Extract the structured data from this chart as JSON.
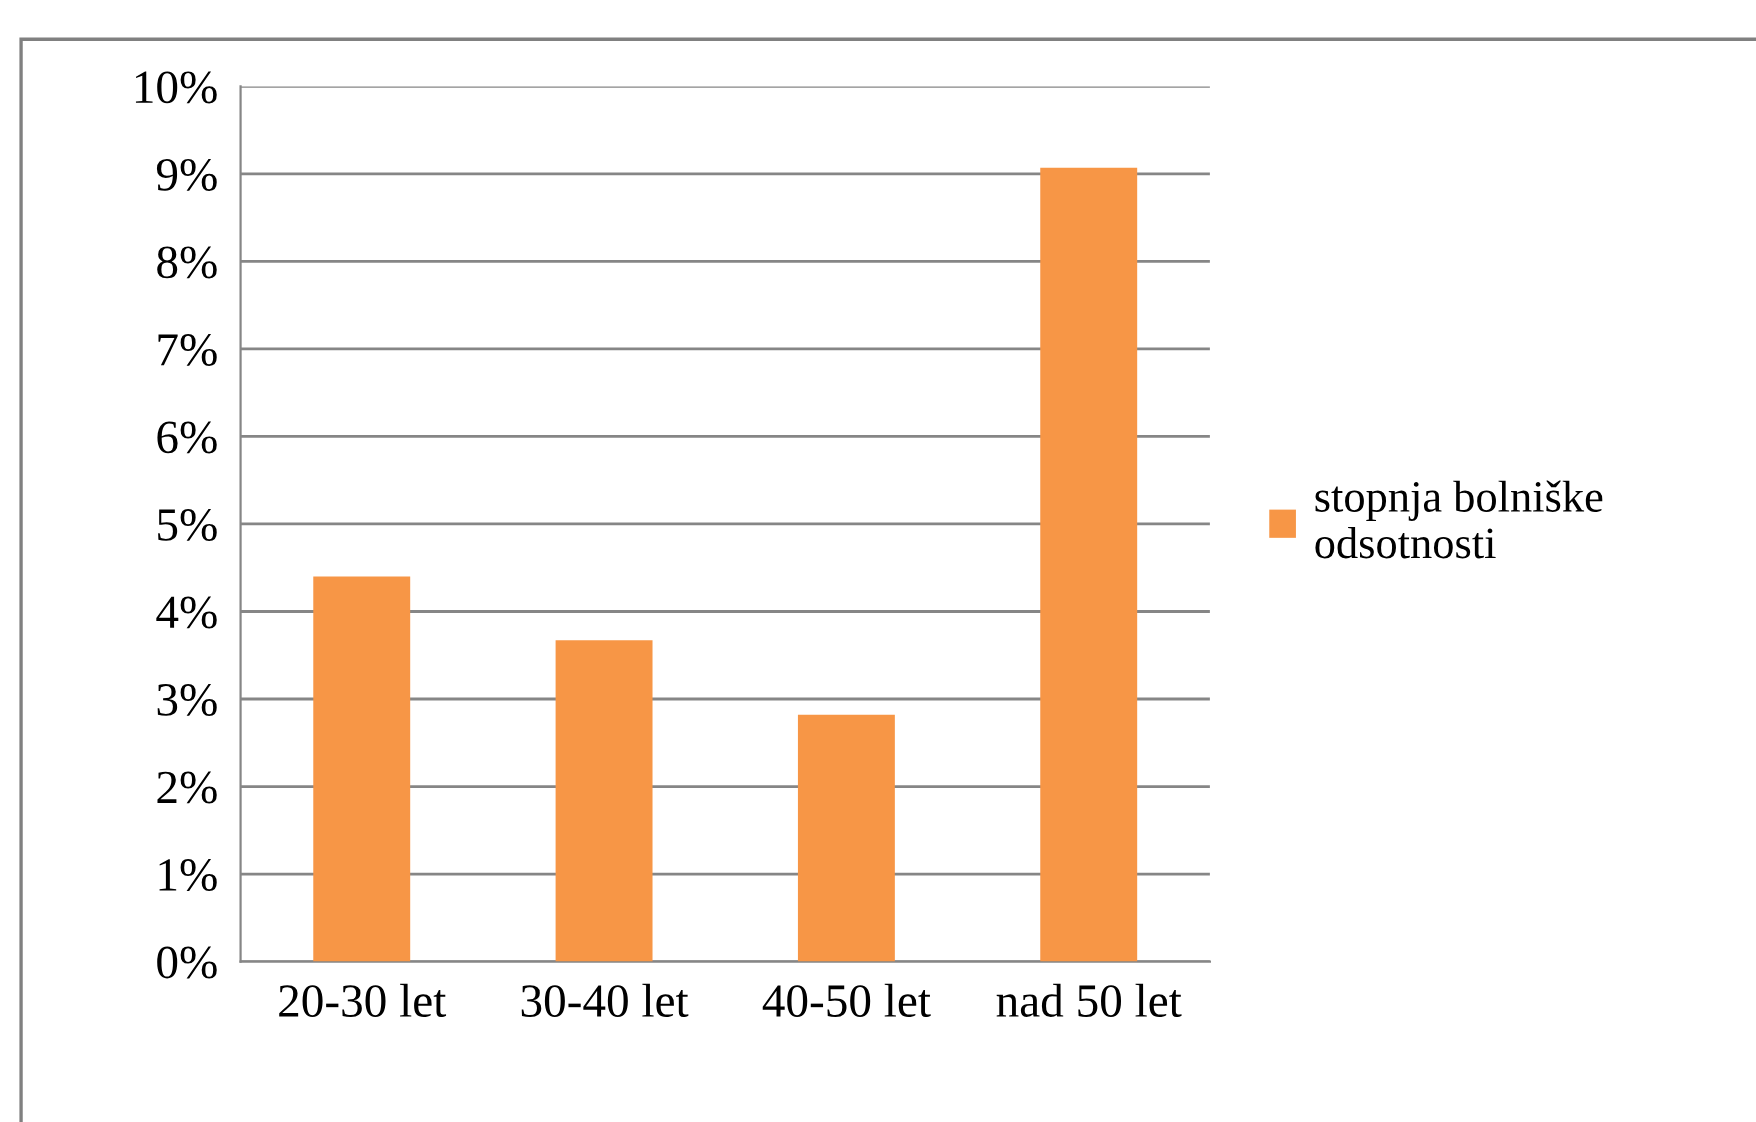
{
  "chart_data": {
    "type": "bar",
    "categories": [
      "20-30 let",
      "30-40 let",
      "40-50 let",
      "nad 50 let"
    ],
    "series": [
      {
        "name": "stopnja bolniške\nodsotnosti",
        "color": "#f79646",
        "values": [
          4.4,
          3.67,
          2.82,
          9.07
        ]
      }
    ],
    "ylim": [
      0,
      10
    ],
    "yticks": [
      {
        "value": 0,
        "label": "0%"
      },
      {
        "value": 1,
        "label": "1%"
      },
      {
        "value": 2,
        "label": "2%"
      },
      {
        "value": 3,
        "label": "3%"
      },
      {
        "value": 4,
        "label": "4%"
      },
      {
        "value": 5,
        "label": "5%"
      },
      {
        "value": 6,
        "label": "6%"
      },
      {
        "value": 7,
        "label": "7%"
      },
      {
        "value": 8,
        "label": "8%"
      },
      {
        "value": 9,
        "label": "9%"
      },
      {
        "value": 10,
        "label": "10%"
      }
    ],
    "grid": "y",
    "legend": "right"
  }
}
